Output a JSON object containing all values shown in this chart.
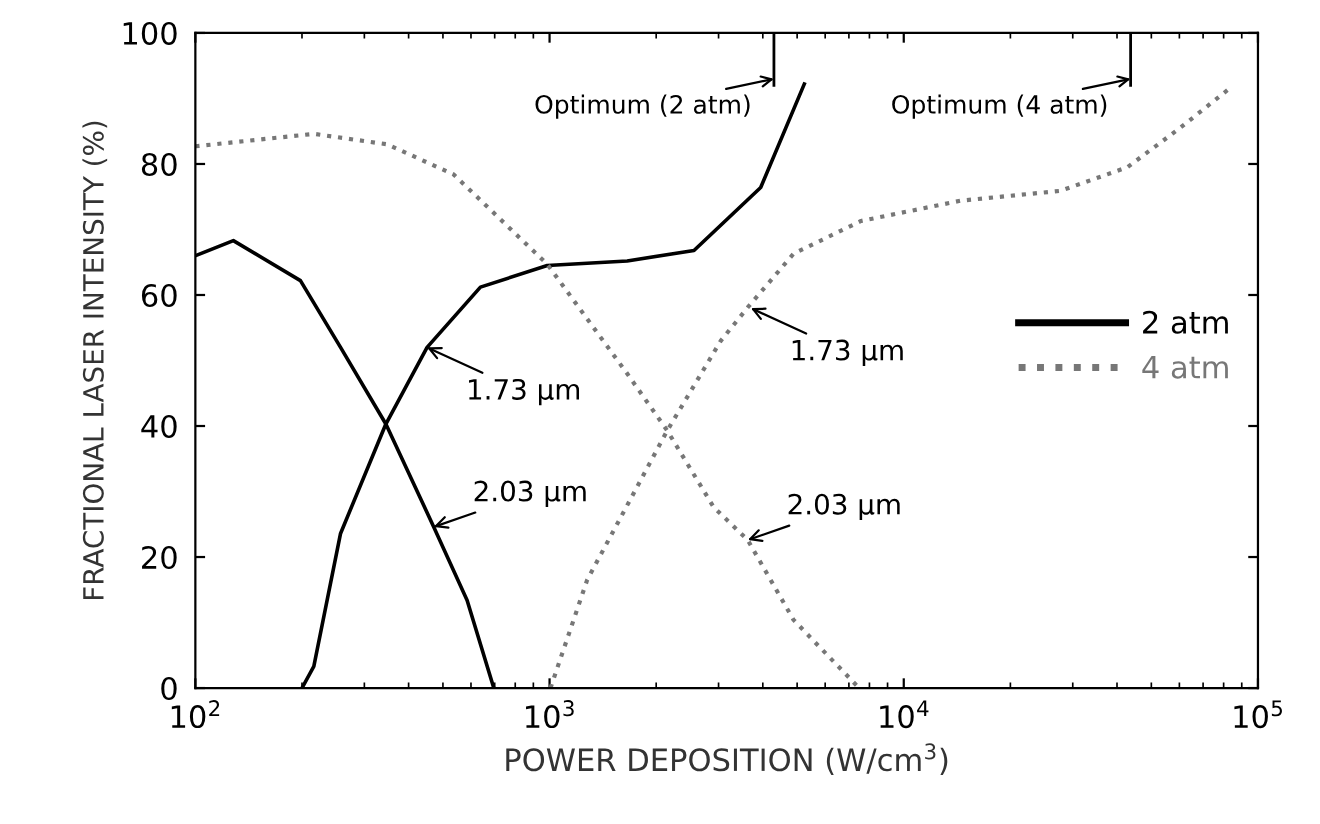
{
  "chart_data": {
    "type": "line",
    "xlabel": "POWER DEPOSITION (W/cm$^{3}$)",
    "ylabel": "FRACTIONAL LASER INTENSITY (%)",
    "log": "x",
    "xlim": [
      100,
      100000
    ],
    "xticks": [
      {
        "value": 100,
        "label": "10$^{2}$"
      },
      {
        "value": 1000,
        "label": "10$^{3}$"
      },
      {
        "value": 10000,
        "label": "10$^{4}$"
      },
      {
        "value": 100000,
        "label": "10$^{5}$"
      }
    ],
    "ylim": [
      0,
      100
    ],
    "yticks": [
      0,
      20,
      40,
      60,
      80,
      100
    ],
    "grid": false,
    "legend": "right",
    "marker": "none",
    "series": [
      {
        "name": "2 atm",
        "color": "#000000",
        "line_style": "solid",
        "x": [
          200,
          216,
          257,
          345,
          451,
          638,
          985,
          1656,
          2557,
          3945,
          5238
        ],
        "values": [
          0,
          3.3,
          23.6,
          40.3,
          52,
          61.2,
          64.5,
          65.2,
          66.8,
          76.4,
          92.2
        ]
      },
      {
        "color": "#000000",
        "line_style": "solid",
        "x": [
          100,
          128,
          198,
          257,
          345,
          471,
          585,
          696
        ],
        "values": [
          66,
          68.3,
          62.2,
          52,
          40.3,
          24.6,
          13.4,
          0
        ]
      },
      {
        "name": "4 atm",
        "color": "#777777",
        "line_style": "dotted",
        "x": [
          1006,
          1277,
          2149,
          3043,
          3626,
          4885,
          7570,
          14490,
          27700,
          42800,
          60600,
          83900
        ],
        "values": [
          0,
          16.5,
          39.3,
          53,
          58.1,
          66.3,
          71.3,
          74.4,
          75.9,
          79.5,
          85.6,
          91.7
        ]
      },
      {
        "color": "#777777",
        "line_style": "dotted",
        "x": [
          100,
          216,
          348,
          536,
          985,
          1656,
          2149,
          2907,
          3626,
          4885,
          7480
        ],
        "values": [
          82.7,
          84.6,
          83,
          78.4,
          64.7,
          48,
          39.3,
          27.6,
          22.6,
          10.4,
          0
        ]
      }
    ],
    "ref_lines": [
      {
        "axis": "x",
        "value": 4300,
        "label": "Optimum (2 atm)",
        "color": "#000000"
      },
      {
        "axis": "x",
        "value": 43700,
        "label": "Optimum (4 atm)",
        "color": "#000000"
      }
    ],
    "annotations": [
      {
        "text": "1.73 µm",
        "x": 451,
        "y": 52
      },
      {
        "text": "2.03 µm",
        "x": 471,
        "y": 24.6
      },
      {
        "text": "1.73 µm",
        "x": 3700,
        "y": 58
      },
      {
        "text": "2.03 µm",
        "x": 3626,
        "y": 22.6
      }
    ]
  }
}
